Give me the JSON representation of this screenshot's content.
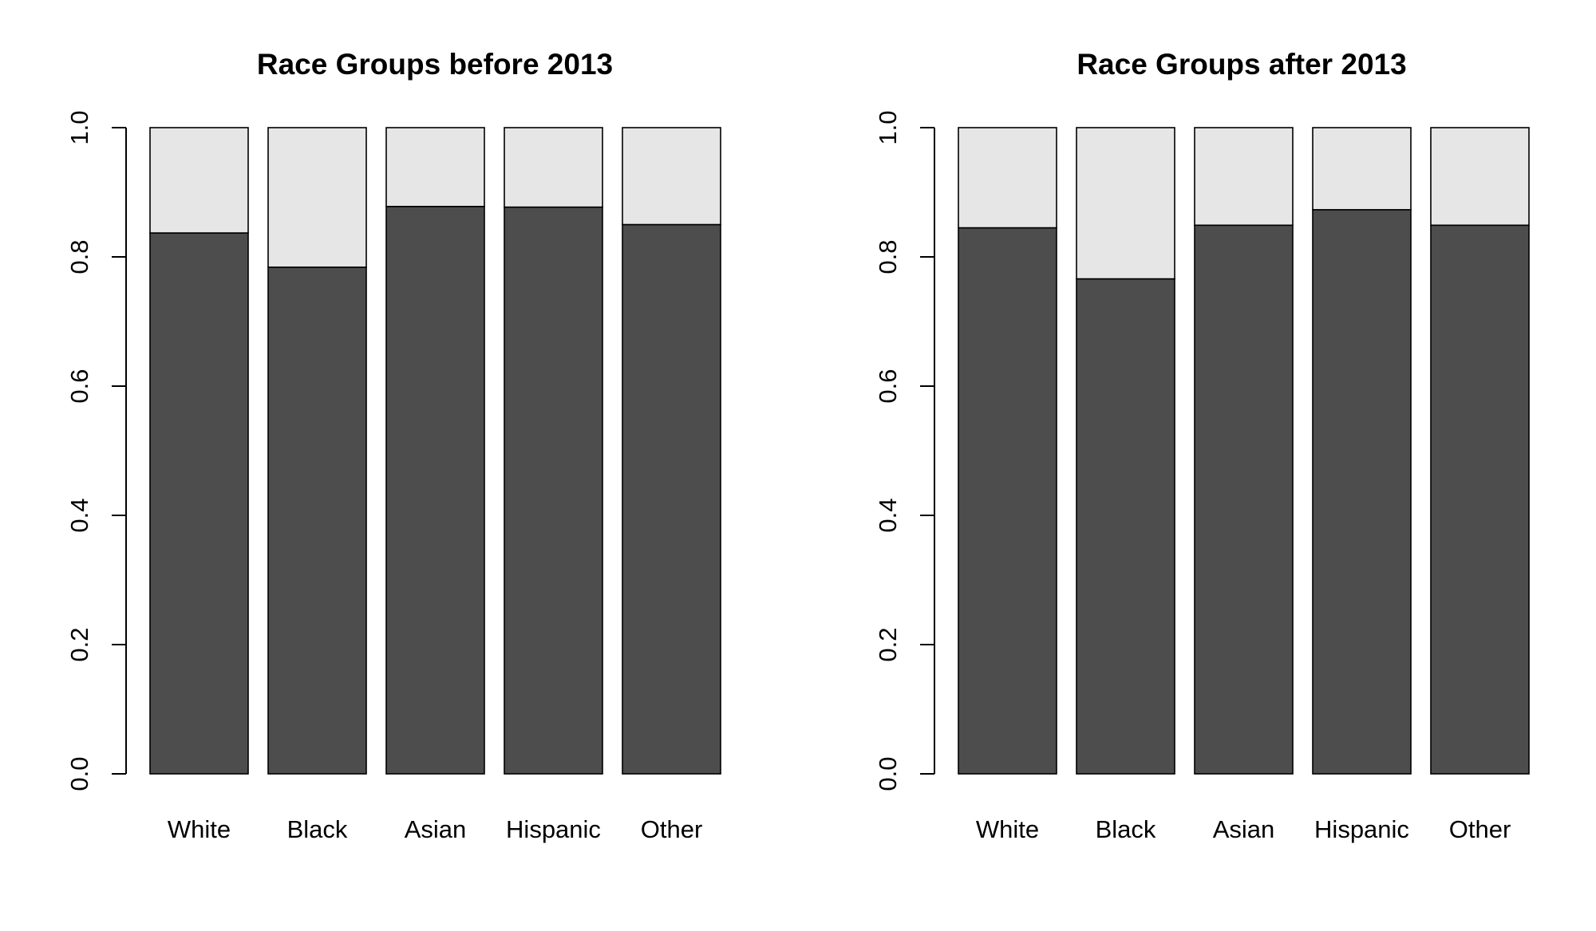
{
  "chart_data": [
    {
      "type": "bar",
      "stacked": true,
      "title": "Race Groups before 2013",
      "xlabel": "",
      "ylabel": "",
      "ylim": [
        0,
        1
      ],
      "yticks": [
        "0.0",
        "0.2",
        "0.4",
        "0.6",
        "0.8",
        "1.0"
      ],
      "categories": [
        "White",
        "Black",
        "Asian",
        "Hispanic",
        "Other"
      ],
      "series": [
        {
          "values": [
            0.837,
            0.784,
            0.878,
            0.877,
            0.85
          ],
          "color": "#4d4d4d"
        },
        {
          "values": [
            0.163,
            0.216,
            0.122,
            0.123,
            0.15
          ],
          "color": "#e6e6e6"
        }
      ]
    },
    {
      "type": "bar",
      "stacked": true,
      "title": "Race Groups after 2013",
      "xlabel": "",
      "ylabel": "",
      "ylim": [
        0,
        1
      ],
      "yticks": [
        "0.0",
        "0.2",
        "0.4",
        "0.6",
        "0.8",
        "1.0"
      ],
      "categories": [
        "White",
        "Black",
        "Asian",
        "Hispanic",
        "Other"
      ],
      "series": [
        {
          "values": [
            0.845,
            0.766,
            0.849,
            0.873,
            0.849
          ],
          "color": "#4d4d4d"
        },
        {
          "values": [
            0.155,
            0.234,
            0.151,
            0.127,
            0.151
          ],
          "color": "#e6e6e6"
        }
      ]
    }
  ]
}
